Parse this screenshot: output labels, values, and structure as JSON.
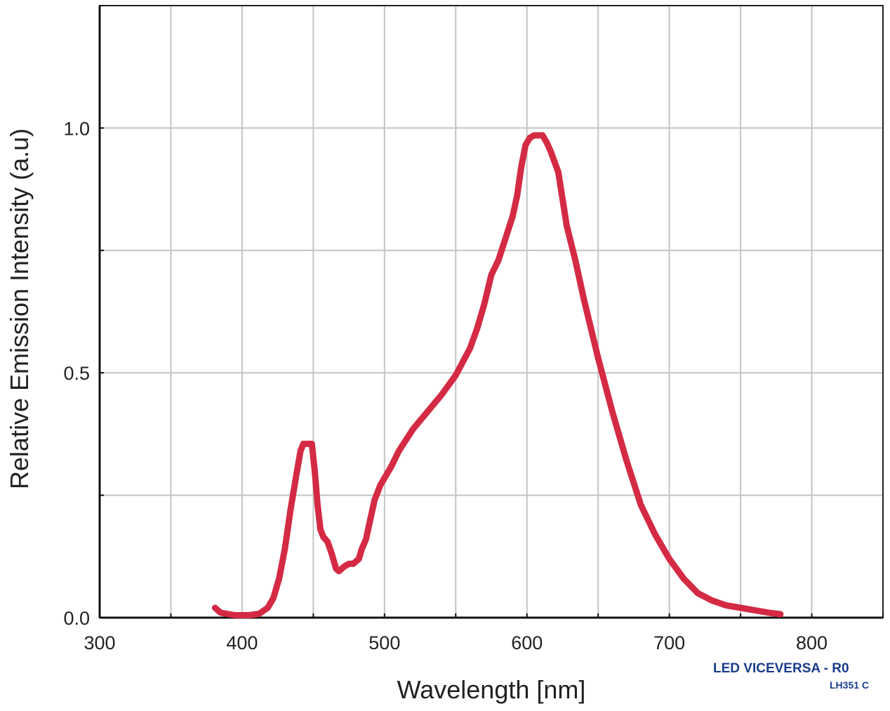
{
  "chart_data": {
    "type": "line",
    "xlabel": "Wavelength [nm]",
    "ylabel": "Relative Emission Intensity (a.u)",
    "xlim": [
      300,
      850
    ],
    "ylim": [
      0,
      1.25
    ],
    "x_ticks": [
      300,
      400,
      500,
      600,
      700,
      800
    ],
    "x_tick_labels": [
      "300",
      "400",
      "500",
      "600",
      "700",
      "800"
    ],
    "y_ticks": [
      0,
      0.5,
      1.0
    ],
    "y_tick_labels": [
      "0.0",
      "0.5",
      "1.0"
    ],
    "x_grid": [
      300,
      350,
      400,
      450,
      500,
      550,
      600,
      650,
      700,
      750,
      800,
      850
    ],
    "y_grid": [
      0,
      0.25,
      0.5,
      0.75,
      1.0,
      1.25
    ],
    "grid": true,
    "series": [
      {
        "color": "#d42a44",
        "x": [
          381,
          385,
          395,
          405,
          412,
          418,
          422,
          426,
          430,
          434,
          438,
          441,
          443,
          445,
          447,
          449,
          451,
          453,
          455,
          457,
          460,
          463,
          466,
          468,
          470,
          472,
          475,
          478,
          482,
          484,
          487,
          490,
          493,
          497,
          500,
          505,
          510,
          520,
          530,
          540,
          550,
          560,
          565,
          570,
          575,
          580,
          585,
          590,
          593,
          596,
          599,
          602,
          605,
          608,
          611,
          614,
          617,
          622,
          628,
          634,
          640,
          650,
          660,
          670,
          680,
          690,
          700,
          710,
          720,
          730,
          735,
          740,
          750,
          760,
          770,
          778
        ],
        "y": [
          0.02,
          0.01,
          0.005,
          0.005,
          0.008,
          0.02,
          0.04,
          0.08,
          0.14,
          0.22,
          0.29,
          0.34,
          0.355,
          0.355,
          0.355,
          0.355,
          0.3,
          0.23,
          0.18,
          0.165,
          0.155,
          0.13,
          0.1,
          0.095,
          0.1,
          0.105,
          0.11,
          0.11,
          0.12,
          0.14,
          0.16,
          0.2,
          0.24,
          0.27,
          0.285,
          0.31,
          0.34,
          0.385,
          0.42,
          0.455,
          0.495,
          0.55,
          0.59,
          0.64,
          0.7,
          0.73,
          0.775,
          0.82,
          0.86,
          0.92,
          0.965,
          0.98,
          0.985,
          0.985,
          0.985,
          0.97,
          0.95,
          0.91,
          0.8,
          0.73,
          0.65,
          0.53,
          0.42,
          0.32,
          0.23,
          0.17,
          0.12,
          0.08,
          0.05,
          0.035,
          0.03,
          0.025,
          0.02,
          0.015,
          0.01,
          0.007
        ]
      }
    ]
  },
  "branding": {
    "title": "LED VICEVERSA - R0",
    "code": "LH351 C"
  }
}
